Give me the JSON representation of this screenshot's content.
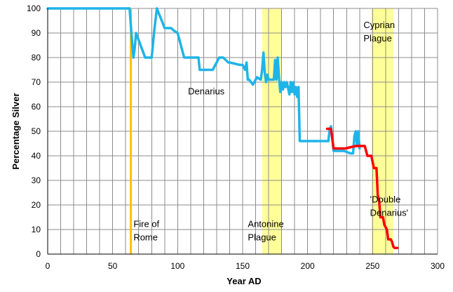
{
  "chart_data": {
    "type": "line",
    "title": "",
    "xlabel": "Year AD",
    "ylabel": "Percentage Silver",
    "xlim": [
      0,
      300
    ],
    "ylim": [
      0,
      100
    ],
    "x_ticks": [
      0,
      50,
      100,
      150,
      200,
      250,
      300
    ],
    "y_ticks": [
      0,
      10,
      20,
      30,
      40,
      50,
      60,
      70,
      80,
      90,
      100
    ],
    "grid": "both",
    "legend": "none",
    "shaded_regions": [
      {
        "x_start": 165,
        "x_end": 180,
        "color": "#ffff99"
      },
      {
        "x_start": 249,
        "x_end": 266,
        "color": "#ffff99"
      }
    ],
    "vertical_lines": [
      {
        "x": 64,
        "color": "#ffc000"
      }
    ],
    "annotations": [
      {
        "lines": [
          "Denarius"
        ],
        "x": 108,
        "y": 65
      },
      {
        "lines": [
          "Fire of",
          "Rome"
        ],
        "x": 66,
        "y": 11
      },
      {
        "lines": [
          "Antonine",
          "Plague"
        ],
        "x": 154,
        "y": 11
      },
      {
        "lines": [
          "Cyprian",
          "Plague"
        ],
        "x": 243,
        "y": 92
      },
      {
        "lines": [
          "'Double",
          "Denarius'"
        ],
        "x": 248,
        "y": 21
      }
    ],
    "series": [
      {
        "name": "",
        "color": "#1fb4e8",
        "x": [
          0,
          63,
          64,
          65,
          66,
          67,
          68,
          75,
          80,
          82,
          84,
          90,
          95,
          97,
          100,
          105,
          107,
          116,
          117,
          123,
          127,
          132,
          135,
          139,
          140,
          148,
          150,
          152,
          153,
          154,
          155,
          158,
          161,
          164,
          165,
          166,
          167,
          168,
          169,
          170,
          174,
          175,
          176,
          177,
          178,
          179,
          180,
          181,
          182,
          183,
          184,
          186,
          187,
          188,
          189,
          190,
          191,
          192,
          193,
          194,
          195,
          198,
          205,
          210,
          214,
          215,
          216,
          217,
          218,
          219,
          220,
          225,
          228,
          233,
          235,
          236,
          237,
          238,
          239,
          240
        ],
        "y": [
          100,
          100,
          93,
          86,
          80,
          84,
          90,
          80,
          80,
          91,
          100,
          92,
          92,
          91,
          90,
          80,
          80,
          80,
          75,
          75,
          75,
          80,
          80,
          78,
          78,
          77,
          77,
          75,
          78,
          71,
          71,
          69,
          72,
          71,
          75,
          82,
          74,
          70,
          73,
          71,
          71,
          79,
          71,
          80,
          72,
          66,
          70,
          67,
          70,
          68,
          70,
          65,
          70,
          66,
          70,
          65,
          68,
          64,
          68,
          46,
          46,
          46,
          46,
          46,
          46,
          46,
          46,
          51,
          52,
          47,
          42,
          42,
          42,
          41,
          41,
          48,
          50,
          44,
          50,
          43
        ]
      },
      {
        "name": "",
        "color": "#ff0000",
        "x": [
          215,
          218,
          219,
          220,
          227,
          229,
          237,
          239,
          244,
          246,
          248,
          249,
          251,
          253,
          254,
          255,
          256,
          257,
          258,
          259,
          261,
          262,
          264,
          265,
          266,
          267,
          268,
          269
        ],
        "y": [
          51,
          51,
          47,
          43,
          43,
          43,
          44,
          44,
          44,
          40,
          40,
          40,
          35,
          35,
          24,
          22,
          15,
          15,
          15,
          12,
          10,
          6,
          6,
          5,
          3,
          2.5,
          2.5,
          2.5
        ]
      }
    ]
  }
}
